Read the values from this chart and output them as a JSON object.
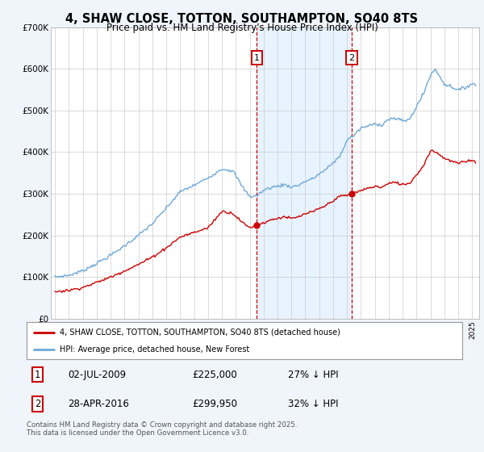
{
  "title_line1": "4, SHAW CLOSE, TOTTON, SOUTHAMPTON, SO40 8TS",
  "title_line2": "Price paid vs. HM Land Registry's House Price Index (HPI)",
  "legend_label1": "4, SHAW CLOSE, TOTTON, SOUTHAMPTON, SO40 8TS (detached house)",
  "legend_label2": "HPI: Average price, detached house, New Forest",
  "annotation1": {
    "num": "1",
    "date": "02-JUL-2009",
    "price": "£225,000",
    "pct": "27% ↓ HPI"
  },
  "annotation2": {
    "num": "2",
    "date": "28-APR-2016",
    "price": "£299,950",
    "pct": "32% ↓ HPI"
  },
  "footer": "Contains HM Land Registry data © Crown copyright and database right 2025.\nThis data is licensed under the Open Government Licence v3.0.",
  "red_color": "#cc0000",
  "blue_color": "#6ea8d8",
  "vline1_x": 2009.5,
  "vline2_x": 2016.33,
  "sale1_x": 2009.5,
  "sale1_y": 225000,
  "sale2_x": 2016.33,
  "sale2_y": 299950,
  "ylim": [
    0,
    700000
  ],
  "xlim": [
    1994.7,
    2025.5
  ],
  "bg_color": "#f0f4fb",
  "plot_bg": "#ffffff",
  "span_color": "#ddeeff"
}
